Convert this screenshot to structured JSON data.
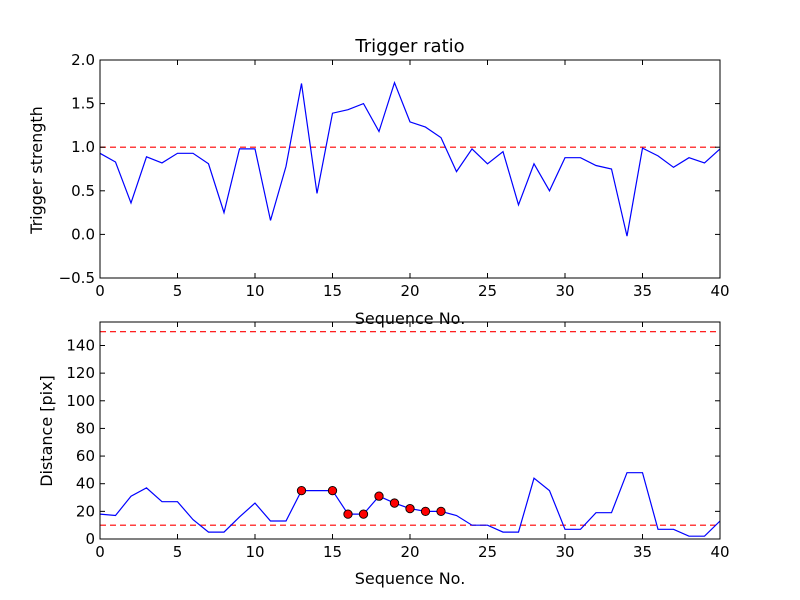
{
  "chart_data": [
    {
      "type": "line",
      "title": "Trigger ratio",
      "xlabel": "Sequence No.",
      "ylabel": "Trigger strength",
      "xlim": [
        0,
        40
      ],
      "ylim": [
        -0.5,
        2.0
      ],
      "xticks": [
        0,
        5,
        10,
        15,
        20,
        25,
        30,
        35,
        40
      ],
      "yticks": [
        -0.5,
        0.0,
        0.5,
        1.0,
        1.5,
        2.0
      ],
      "xtick_labels": [
        "0",
        "5",
        "10",
        "15",
        "20",
        "25",
        "30",
        "35",
        "40"
      ],
      "ytick_labels": [
        "−0.5",
        "0.0",
        "0.5",
        "1.0",
        "1.5",
        "2.0"
      ],
      "series": [
        {
          "name": "trigger strength",
          "color": "#0000ff",
          "x": [
            0,
            1,
            2,
            3,
            4,
            5,
            6,
            7,
            8,
            9,
            10,
            11,
            12,
            13,
            14,
            15,
            16,
            17,
            18,
            19,
            20,
            21,
            22,
            23,
            24,
            25,
            26,
            27,
            28,
            29,
            30,
            31,
            32,
            33,
            34,
            35,
            36,
            37,
            38,
            39,
            40
          ],
          "y": [
            0.93,
            0.83,
            0.36,
            0.89,
            0.82,
            0.93,
            0.93,
            0.81,
            0.25,
            0.98,
            0.98,
            0.16,
            0.78,
            1.73,
            0.47,
            1.39,
            1.43,
            1.5,
            1.18,
            1.74,
            1.29,
            1.23,
            1.11,
            0.72,
            0.98,
            0.81,
            0.95,
            0.34,
            0.81,
            0.5,
            0.88,
            0.88,
            0.79,
            0.75,
            -0.02,
            0.99,
            0.9,
            0.77,
            0.88,
            0.82,
            0.98
          ]
        }
      ],
      "hlines": [
        {
          "y": 1.0,
          "color": "#ff0000",
          "style": "dashed"
        }
      ]
    },
    {
      "type": "line",
      "title": "",
      "xlabel": "Sequence No.",
      "ylabel": "Distance [pix]",
      "xlim": [
        0,
        40
      ],
      "ylim": [
        0,
        157
      ],
      "xticks": [
        0,
        5,
        10,
        15,
        20,
        25,
        30,
        35,
        40
      ],
      "yticks": [
        0,
        20,
        40,
        60,
        80,
        100,
        120,
        140
      ],
      "xtick_labels": [
        "0",
        "5",
        "10",
        "15",
        "20",
        "25",
        "30",
        "35",
        "40"
      ],
      "ytick_labels": [
        "0",
        "20",
        "40",
        "60",
        "80",
        "100",
        "120",
        "140"
      ],
      "series": [
        {
          "name": "distance",
          "color": "#0000ff",
          "x": [
            0,
            1,
            2,
            3,
            4,
            5,
            6,
            7,
            8,
            9,
            10,
            11,
            12,
            13,
            14,
            15,
            16,
            17,
            18,
            19,
            20,
            21,
            22,
            23,
            24,
            25,
            26,
            27,
            28,
            29,
            30,
            31,
            32,
            33,
            34,
            35,
            36,
            37,
            38,
            39,
            40
          ],
          "y": [
            18,
            17,
            31,
            37,
            27,
            27,
            14,
            5,
            5,
            16,
            26,
            13,
            13,
            35,
            35,
            35,
            18,
            18,
            31,
            26,
            22,
            20,
            20,
            17,
            10,
            10,
            5,
            5,
            44,
            35,
            7,
            7,
            19,
            19,
            48,
            48,
            7,
            7,
            2,
            2,
            13
          ]
        }
      ],
      "markers": {
        "color": "#ff0000",
        "x": [
          13,
          15,
          16,
          17,
          18,
          19,
          20,
          21,
          22
        ],
        "y": [
          35,
          35,
          18,
          18,
          31,
          26,
          22,
          20,
          20
        ]
      },
      "hlines": [
        {
          "y": 150,
          "color": "#ff0000",
          "style": "dashed"
        },
        {
          "y": 10,
          "color": "#ff0000",
          "style": "dashed"
        }
      ]
    }
  ]
}
